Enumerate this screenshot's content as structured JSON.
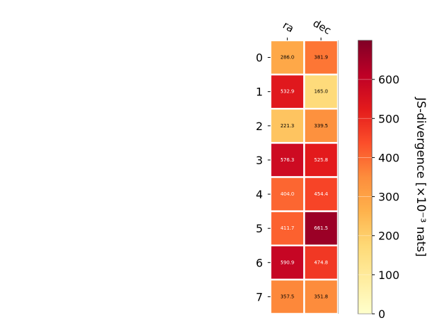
{
  "chart_data": {
    "type": "heatmap",
    "title": "",
    "x_categories": [
      "ra",
      "dec"
    ],
    "y_categories": [
      "0",
      "1",
      "2",
      "3",
      "4",
      "5",
      "6",
      "7"
    ],
    "values": [
      [
        286.0,
        381.9
      ],
      [
        532.9,
        165.0
      ],
      [
        221.3,
        339.5
      ],
      [
        576.3,
        525.8
      ],
      [
        404.0,
        454.4
      ],
      [
        411.7,
        661.5
      ],
      [
        590.9,
        474.8
      ],
      [
        357.5,
        351.8
      ]
    ],
    "cell_labels": [
      [
        "286.0",
        "381.9"
      ],
      [
        "532.9",
        "165.0"
      ],
      [
        "221.3",
        "339.5"
      ],
      [
        "576.3",
        "525.8"
      ],
      [
        "404.0",
        "454.4"
      ],
      [
        "411.7",
        "661.5"
      ],
      [
        "590.9",
        "474.8"
      ],
      [
        "357.5",
        "351.8"
      ]
    ],
    "colormap": "YlOrRd",
    "colorbar": {
      "label": "JS-divergence [×10⁻³ nats]",
      "range": [
        0,
        700
      ],
      "ticks": [
        0,
        100,
        200,
        300,
        400,
        500,
        600
      ],
      "tick_labels": [
        "0",
        "100",
        "200",
        "300",
        "400",
        "500",
        "600"
      ]
    },
    "xtick_position": "top",
    "grid": false
  }
}
